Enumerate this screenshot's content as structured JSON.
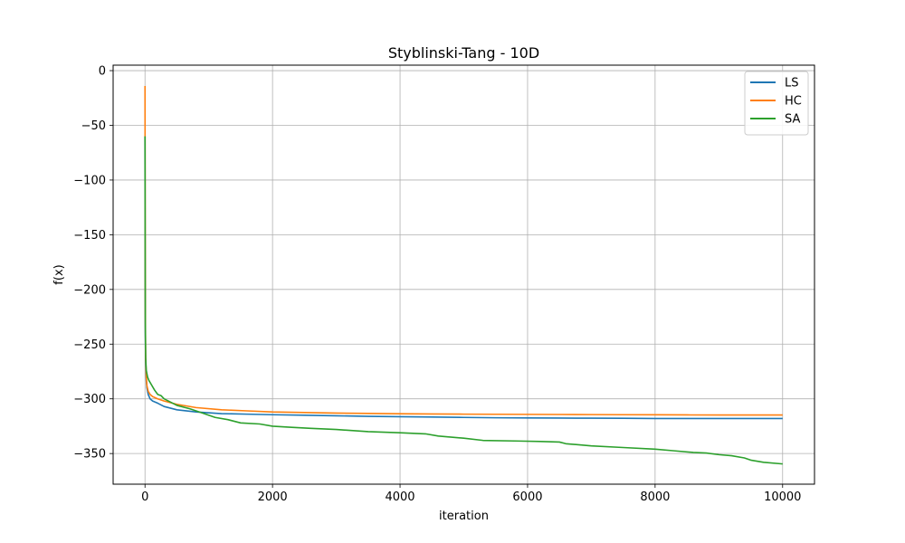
{
  "chart_data": {
    "type": "line",
    "title": "Styblinski-Tang - 10D",
    "xlabel": "iteration",
    "ylabel": "f(x)",
    "xlim": [
      -500,
      10500
    ],
    "ylim": [
      -378,
      5
    ],
    "xticks": [
      0,
      2000,
      4000,
      6000,
      8000,
      10000
    ],
    "yticks": [
      0,
      -50,
      -100,
      -150,
      -200,
      -250,
      -300,
      -350
    ],
    "grid": true,
    "legend_position": "top-right",
    "series": [
      {
        "name": "LS",
        "color": "#1f77b4",
        "x": [
          0,
          2,
          5,
          10,
          20,
          30,
          50,
          80,
          120,
          200,
          300,
          500,
          800,
          1200,
          1600,
          2000,
          2500,
          3000,
          3500,
          4000,
          4500,
          5000,
          5500,
          6000,
          6500,
          7000,
          7500,
          8000,
          8500,
          9000,
          9500,
          10000
        ],
        "y": [
          -60,
          -180,
          -240,
          -265,
          -283,
          -290,
          -296,
          -300,
          -302,
          -304,
          -307,
          -310,
          -312,
          -313.5,
          -314,
          -314.5,
          -315,
          -315.5,
          -316,
          -316.3,
          -316.6,
          -317,
          -317.3,
          -317.5,
          -317.6,
          -317.7,
          -317.8,
          -318,
          -318,
          -318,
          -318,
          -318
        ]
      },
      {
        "name": "HC",
        "color": "#ff7f0e",
        "x": [
          0,
          2,
          5,
          10,
          20,
          30,
          50,
          80,
          120,
          200,
          300,
          500,
          800,
          1200,
          1600,
          2000,
          2500,
          3000,
          3500,
          4000,
          4500,
          5000,
          5500,
          6000,
          6500,
          7000,
          7500,
          8000,
          8500,
          9000,
          9500,
          10000
        ],
        "y": [
          -14,
          -120,
          -220,
          -262,
          -280,
          -288,
          -293,
          -296,
          -298,
          -300,
          -302,
          -305,
          -308,
          -310,
          -311,
          -312,
          -312.5,
          -313,
          -313.3,
          -313.6,
          -313.8,
          -314,
          -314.1,
          -314.2,
          -314.3,
          -314.4,
          -314.5,
          -314.6,
          -314.7,
          -314.8,
          -314.8,
          -314.8
        ]
      },
      {
        "name": "SA",
        "color": "#2ca02c",
        "x": [
          0,
          2,
          5,
          10,
          20,
          40,
          60,
          100,
          150,
          200,
          250,
          300,
          400,
          500,
          700,
          900,
          1100,
          1300,
          1500,
          1800,
          2000,
          2300,
          2600,
          3000,
          3500,
          4000,
          4400,
          4600,
          5000,
          5300,
          5800,
          6200,
          6500,
          6600,
          7000,
          7500,
          8000,
          8300,
          8600,
          8800,
          9000,
          9200,
          9400,
          9500,
          9700,
          10000
        ],
        "y": [
          -60,
          -150,
          -230,
          -262,
          -274,
          -280,
          -283,
          -287,
          -292,
          -296,
          -297,
          -300,
          -303,
          -306,
          -309,
          -313,
          -317,
          -319,
          -322,
          -323,
          -325,
          -326,
          -327,
          -328,
          -330,
          -331,
          -332,
          -334,
          -336,
          -338,
          -338.5,
          -339,
          -339.5,
          -341,
          -343,
          -344.5,
          -346,
          -347.5,
          -349,
          -349.5,
          -351,
          -352,
          -354,
          -356,
          -358,
          -359.5
        ]
      }
    ]
  }
}
